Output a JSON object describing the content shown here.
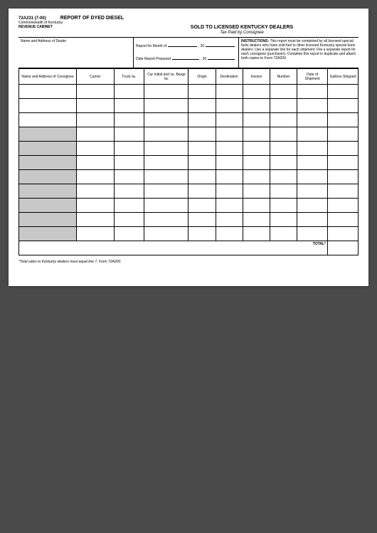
{
  "header": {
    "form_number": "72A231 (7-00)",
    "title_main": "REPORT OF DYED DIESEL",
    "org_line1": "Commonwealth of Kentucky",
    "org_line2": "REVENUE CABINET",
    "title_sub": "SOLD TO LICENSED KENTUCKY DEALERS",
    "subtitle_italic": "Tax Paid by Consignee"
  },
  "upper": {
    "dealer_label": "Name and Address of Dealer",
    "report_month_label": "Report for Month of",
    "date_prepared_label": "Date Report Prepared",
    "year_prefix": ", 20",
    "instructions_label": "INSTRUCTIONS:",
    "instructions_text": " This report must be completed by all licensed special fuels dealers who have sold fuel to other licensed Kentucky special fuels dealers. Use a separate line for each shipment. File a separate report for each consignee (purchaser). Complete this report in duplicate and attach both copies to Form 72A200."
  },
  "columns": {
    "c1": "Name and Address\nof Consignee",
    "c2": "Carrier",
    "c3": "Truck №.",
    "c4": "Car Initial and №.\nBarge №.",
    "c5": "Origin",
    "c6": "Destination",
    "c7": "Invoice",
    "c8": "Number",
    "c9": "Date of\nShipment",
    "c10": "Gallons\nShipped"
  },
  "total_label": "TOTAL*",
  "footnote": "*Total sales to Kentucky dealers must equal line 7, Form 72A200.",
  "layout": {
    "row_count": 11,
    "shaded_rows": [
      4,
      5,
      6,
      7,
      8,
      9,
      10,
      11
    ],
    "col_widths_pct": [
      17,
      11,
      9,
      13,
      8,
      8,
      8,
      8,
      9,
      9
    ]
  }
}
